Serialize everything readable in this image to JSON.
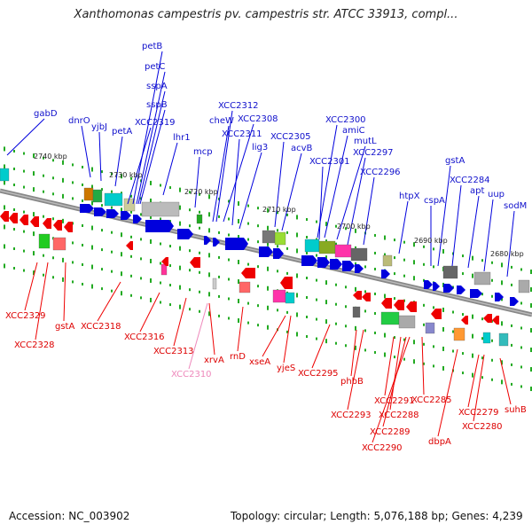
{
  "title": "Xanthomonas campestris pv. campestris str. ATCC 33913, compl...",
  "footer": {
    "accession": "Accession: NC_003902",
    "topology": "Topology: circular; Length: 5,076,188 bp; Genes: 4,239"
  },
  "ticks": [
    "2740 kbp",
    "2730 kbp",
    "2720 kbp",
    "2710 kbp",
    "2700 kbp",
    "2690 kbp",
    "2680 kbp"
  ],
  "top_genes": [
    "petB",
    "petC",
    "sspA",
    "sspB",
    "XCC2319",
    "petA",
    "yjbJ",
    "dnrO",
    "gabD",
    "lhr1",
    "mcp",
    "cheW",
    "XCC2312",
    "XCC2308",
    "XCC2311",
    "lig3",
    "XCC2305",
    "acvB",
    "XCC2300",
    "amiC",
    "XCC2301",
    "mutL",
    "XCC2297",
    "XCC2296",
    "htpX",
    "gstA",
    "cspA",
    "XCC2284",
    "apt",
    "uup",
    "sodM"
  ],
  "bottom_genes": [
    "XCC2329",
    "XCC2328",
    "gstA",
    "XCC2318",
    "XCC2316",
    "XCC2313",
    "XCC2310",
    "xrvA",
    "rnD",
    "xseA",
    "yjeS",
    "XCC2295",
    "phbB",
    "XCC2293",
    "XCC2291",
    "XCC2288",
    "XCC2289",
    "XCC2290",
    "XCC2285",
    "dbpA",
    "XCC2279",
    "XCC2280",
    "suhB"
  ],
  "colors": {
    "forward": "#0000dd",
    "reverse": "#ee0000",
    "highlight": "#ee88bb",
    "backbone": "#888888",
    "cds_tick": "#22aa22"
  }
}
